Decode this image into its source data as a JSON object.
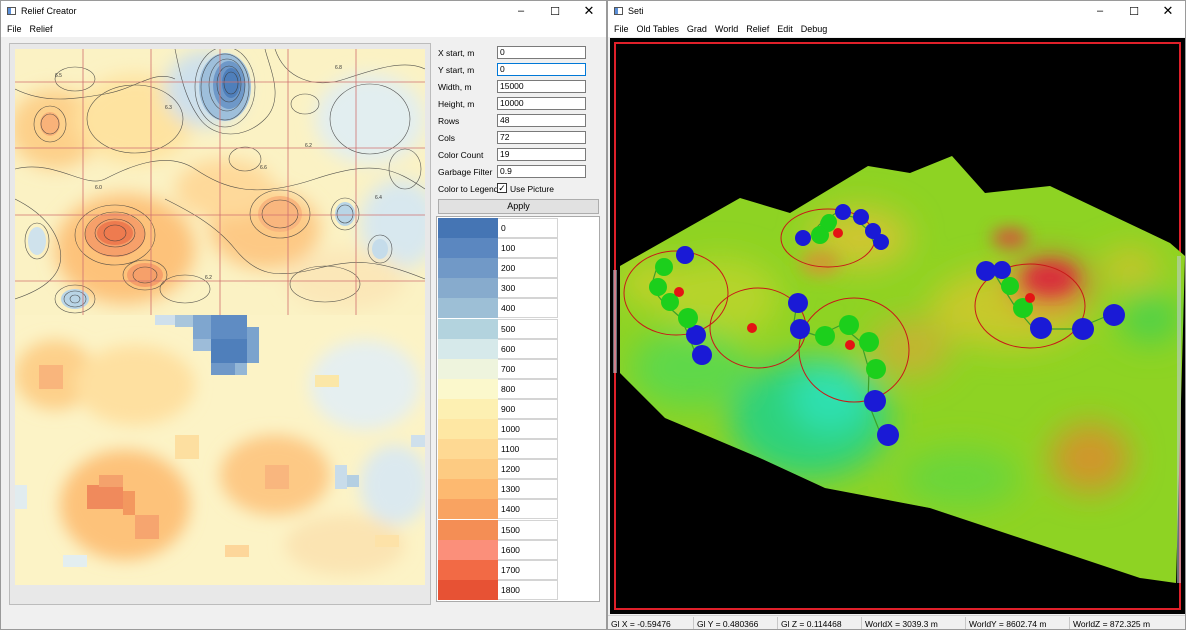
{
  "relief_window": {
    "title": "Relief Creator",
    "icon": "app-window-icon",
    "menu": [
      "File",
      "Relief"
    ],
    "fields": [
      {
        "label": "X start, m",
        "value": "0"
      },
      {
        "label": "Y start, m",
        "value": "0"
      },
      {
        "label": "Width, m",
        "value": "15000"
      },
      {
        "label": "Height, m",
        "value": "10000"
      },
      {
        "label": "Rows",
        "value": "48"
      },
      {
        "label": "Cols",
        "value": "72"
      },
      {
        "label": "Color Count",
        "value": "19"
      },
      {
        "label": "Garbage Filter",
        "value": "0.9"
      }
    ],
    "color_to_legend_label": "Color to Legend",
    "use_picture": {
      "label": "Use Picture",
      "checked": true,
      "mark": "✓"
    },
    "apply_label": "Apply",
    "contour_labels": [
      "6.5",
      "6.3",
      "6.2",
      "6.8",
      "6.0",
      "6.6",
      "6.4",
      "6.2"
    ],
    "legend": [
      {
        "value": "0",
        "color": "#4575b4"
      },
      {
        "value": "100",
        "color": "#5b87c0"
      },
      {
        "value": "200",
        "color": "#7199c7"
      },
      {
        "value": "300",
        "color": "#87abcd"
      },
      {
        "value": "400",
        "color": "#9dbfd6"
      },
      {
        "value": "500",
        "color": "#b3d3de"
      },
      {
        "value": "600",
        "color": "#d6e9ea"
      },
      {
        "value": "700",
        "color": "#eef4dd"
      },
      {
        "value": "800",
        "color": "#fbf8cc"
      },
      {
        "value": "900",
        "color": "#fdf0b2"
      },
      {
        "value": "1000",
        "color": "#fee7a3"
      },
      {
        "value": "1100",
        "color": "#fed993"
      },
      {
        "value": "1200",
        "color": "#fdcb82"
      },
      {
        "value": "1300",
        "color": "#fdb970"
      },
      {
        "value": "1400",
        "color": "#f9a361"
      },
      {
        "value": "1500",
        "color": "#f48e55"
      },
      {
        "value": "1600",
        "color": "#fb8f7a"
      },
      {
        "value": "1700",
        "color": "#f26a45"
      },
      {
        "value": "1800",
        "color": "#e75234"
      }
    ]
  },
  "seti_window": {
    "title": "Seti",
    "icon": "app-window-icon",
    "menu": [
      "File",
      "Old Tables",
      "Grad",
      "World",
      "Relief",
      "Edit",
      "Debug"
    ],
    "status": [
      "Gl X = -0.59476",
      "Gl Y = 0.480366",
      "Gl Z = 0.114468",
      "WorldX = 3039.3 m",
      "WorldY = 8602.74 m",
      "WorldZ = 872.325 m"
    ]
  },
  "window_controls": {
    "minimize": "–",
    "maximize": "☐",
    "close": "✕"
  }
}
